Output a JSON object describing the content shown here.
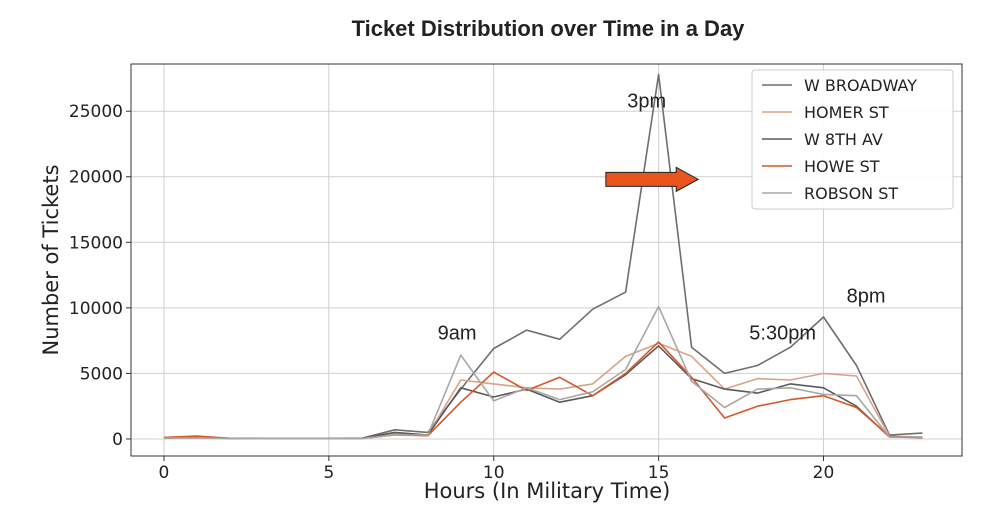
{
  "chart_data": {
    "type": "line",
    "title": "Ticket Distribution over Time in a Day",
    "xlabel": "Hours (In Military Time)",
    "ylabel": "Number of Tickets",
    "xlim": [
      -1,
      24.2
    ],
    "ylim": [
      -1300,
      28600
    ],
    "xticks": [
      0,
      5,
      10,
      15,
      20
    ],
    "yticks": [
      0,
      5000,
      10000,
      15000,
      20000,
      25000
    ],
    "grid": true,
    "legend_position": "top-right",
    "x": [
      0,
      1,
      2,
      3,
      4,
      5,
      6,
      7,
      8,
      9,
      10,
      11,
      12,
      13,
      14,
      15,
      16,
      17,
      18,
      19,
      20,
      21,
      22,
      23
    ],
    "series": [
      {
        "name": "W BROADWAY",
        "color": "#6e6e6e",
        "values": [
          100,
          150,
          50,
          30,
          20,
          30,
          50,
          700,
          500,
          3800,
          6900,
          8300,
          7600,
          9900,
          11200,
          27800,
          7000,
          5000,
          5600,
          7000,
          9300,
          5600,
          300,
          450
        ]
      },
      {
        "name": "HOMER ST",
        "color": "#d9a38a",
        "values": [
          120,
          100,
          40,
          20,
          20,
          20,
          40,
          400,
          300,
          4500,
          4200,
          3900,
          3800,
          4200,
          6300,
          7300,
          6300,
          3800,
          4600,
          4500,
          5000,
          4800,
          200,
          150
        ]
      },
      {
        "name": "W 8TH AV",
        "color": "#5a5a5a",
        "values": [
          80,
          120,
          40,
          20,
          20,
          20,
          50,
          500,
          300,
          3900,
          3200,
          3800,
          2800,
          3300,
          4900,
          7100,
          4600,
          3800,
          3500,
          4200,
          3900,
          2500,
          150,
          100
        ]
      },
      {
        "name": "HOWE ST",
        "color": "#d4582a",
        "values": [
          120,
          220,
          50,
          20,
          20,
          20,
          40,
          300,
          250,
          2800,
          5100,
          3700,
          4700,
          3300,
          5000,
          7400,
          4700,
          1600,
          2500,
          3000,
          3300,
          2400,
          200,
          100
        ]
      },
      {
        "name": "ROBSON ST",
        "color": "#a8a8a8",
        "values": [
          60,
          80,
          30,
          20,
          20,
          20,
          30,
          300,
          300,
          6400,
          2900,
          3900,
          3000,
          3600,
          5300,
          10100,
          4400,
          2400,
          3800,
          3900,
          3400,
          3300,
          150,
          150
        ]
      }
    ],
    "annotations": [
      {
        "text": "3pm",
        "x": 14.05,
        "y": 25300
      },
      {
        "text": "9am",
        "x": 8.3,
        "y": 7600
      },
      {
        "text": "5:30pm",
        "x": 17.75,
        "y": 7600
      },
      {
        "text": "8pm",
        "x": 20.7,
        "y": 10400
      }
    ],
    "arrow": {
      "from_x": 13.4,
      "to_x": 16.2,
      "y": 19800,
      "color": "#e8541c"
    }
  }
}
